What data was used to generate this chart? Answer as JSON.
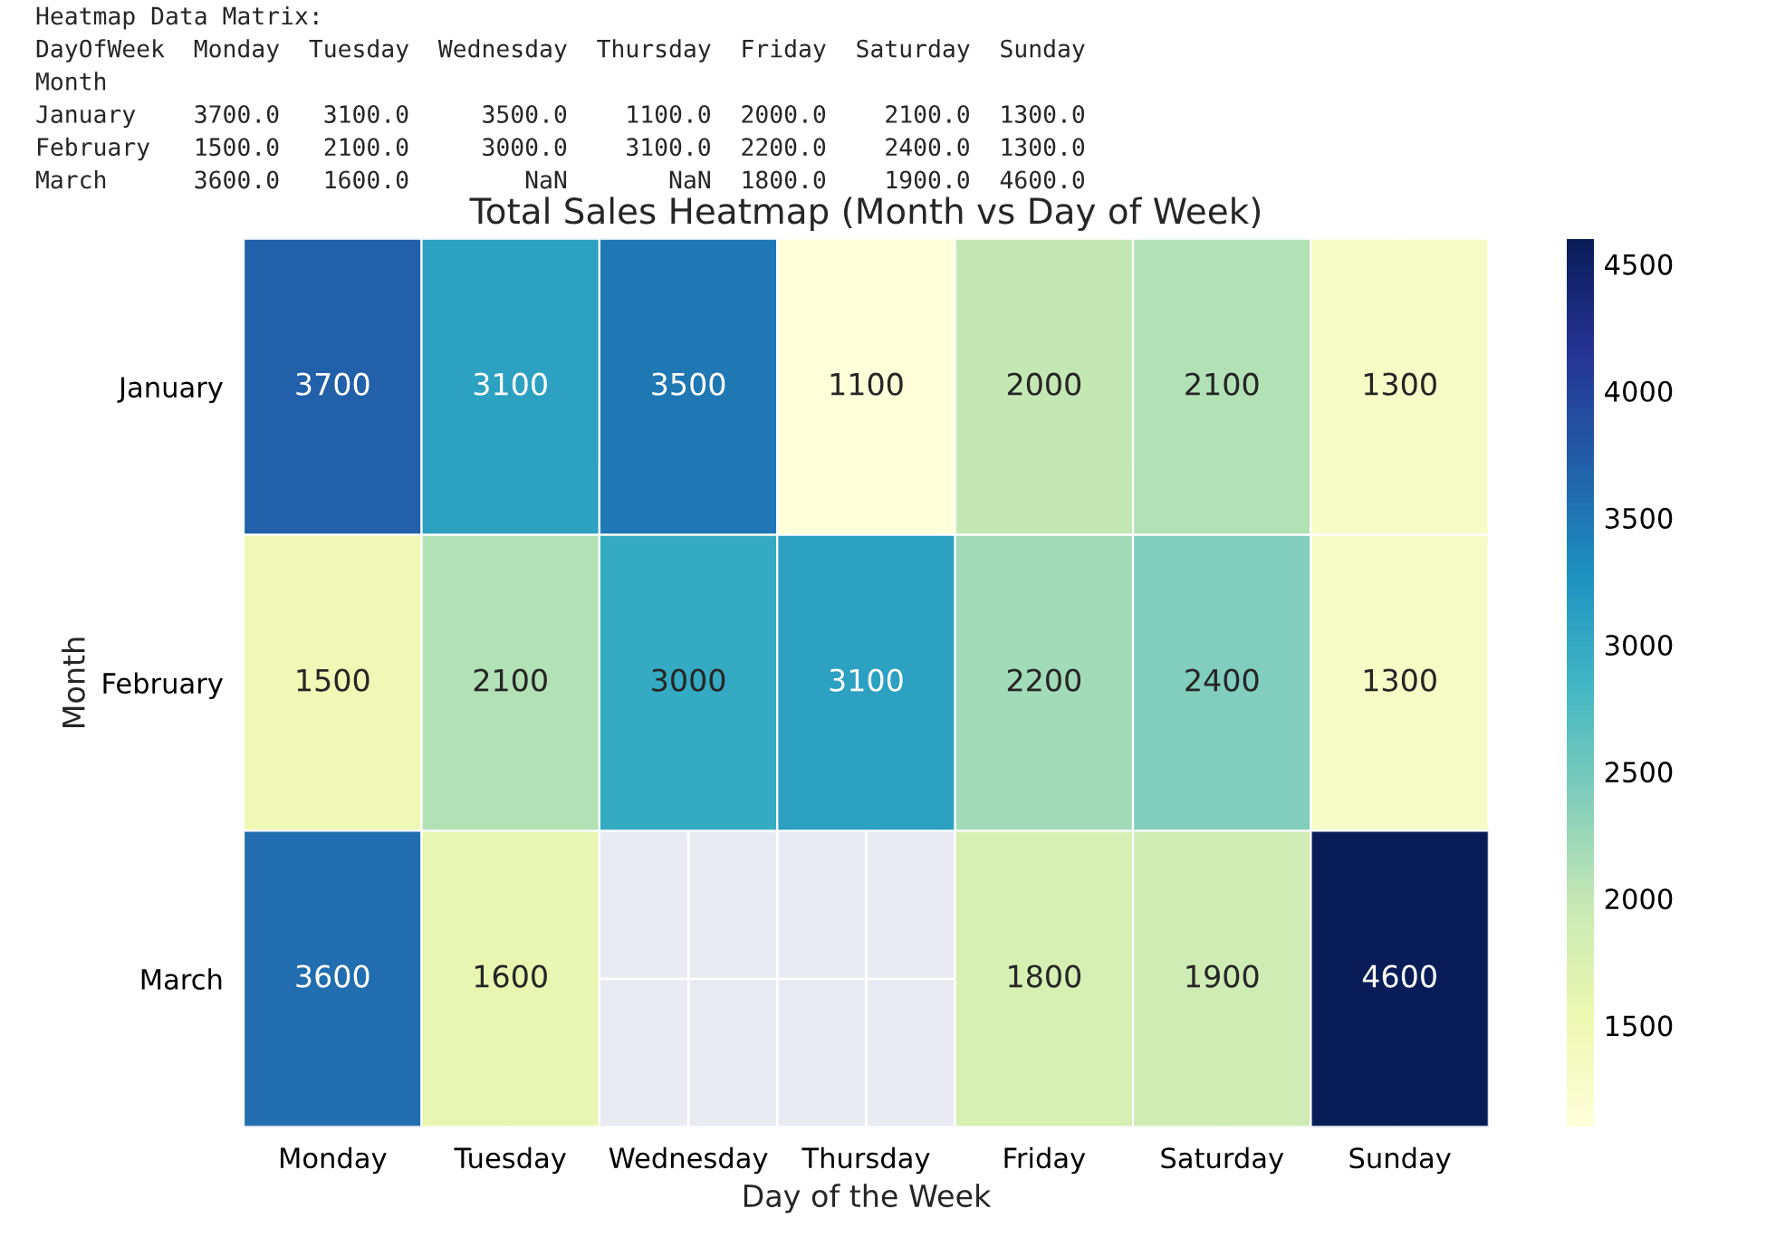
{
  "chart_data": {
    "type": "heatmap",
    "title": "Total Sales Heatmap (Month vs Day of Week)",
    "xlabel": "Day of the Week",
    "ylabel": "Month",
    "categories": [
      "Monday",
      "Tuesday",
      "Wednesday",
      "Thursday",
      "Friday",
      "Saturday",
      "Sunday"
    ],
    "y_categories": [
      "January",
      "February",
      "March"
    ],
    "cells": [
      [
        3700,
        3100,
        3500,
        1100,
        2000,
        2100,
        1300
      ],
      [
        1500,
        2100,
        3000,
        3100,
        2200,
        2400,
        1300
      ],
      [
        3600,
        1600,
        null,
        null,
        1800,
        1900,
        4600
      ]
    ],
    "data_labels": true,
    "clim": [
      1100,
      4600
    ],
    "cticks": [
      1500,
      2000,
      2500,
      3000,
      3500,
      4000,
      4500
    ],
    "grid": true,
    "annotations": [
      "Heatmap Data Matrix:",
      "DayOfWeek  Monday  Tuesday  Wednesday  Thursday  Friday  Saturday  Sunday",
      "Month",
      "January    3700.0   3100.0     3500.0    1100.0  2000.0    2100.0  1300.0",
      "February   1500.0   2100.0     3000.0    3100.0  2200.0    2400.0  1300.0",
      "March      3600.0   1600.0        NaN       NaN  1800.0    1900.0  4600.0"
    ]
  }
}
